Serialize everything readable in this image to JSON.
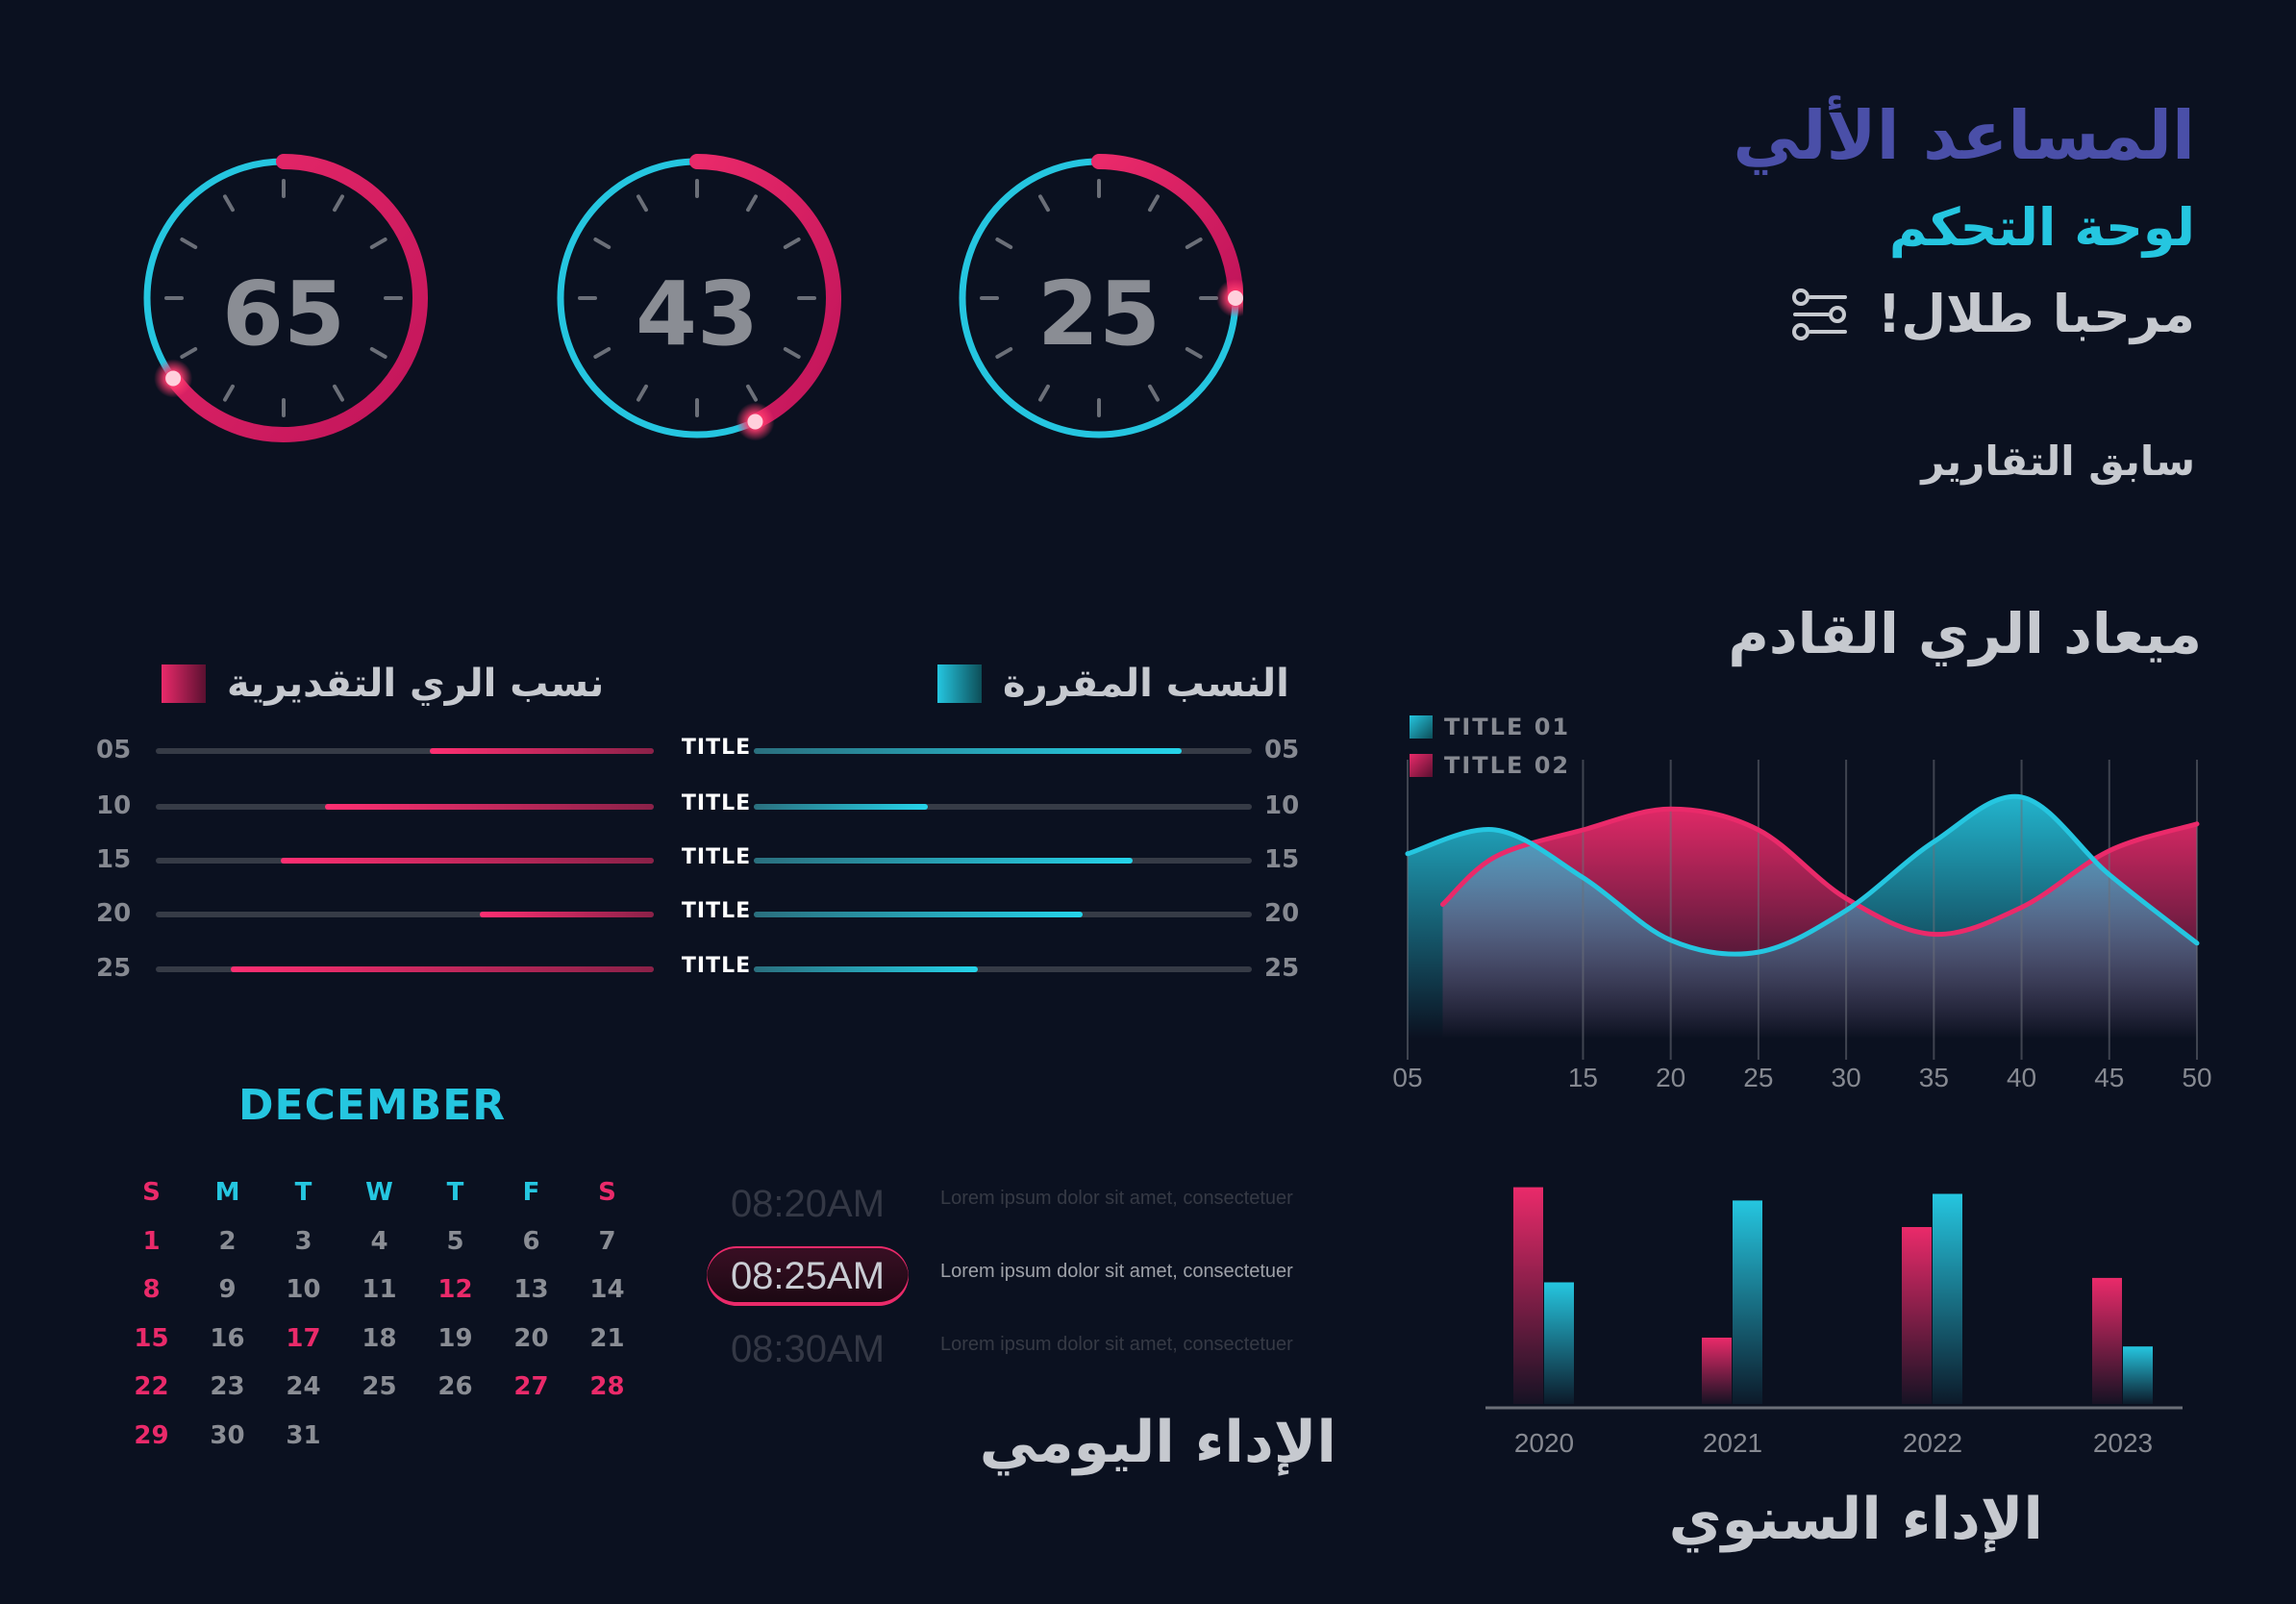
{
  "header": {
    "app_title": "المساعد الألي",
    "dashboard_title": "لوحة التحكم",
    "welcome": "مرحبا طلال!",
    "previous_reports": "سابق التقارير",
    "next_irrigation": "ميعاد الري القادم"
  },
  "gauges": [
    {
      "value": "65",
      "percent": 0.65
    },
    {
      "value": "43",
      "percent": 0.43
    },
    {
      "value": "25",
      "percent": 0.25
    }
  ],
  "comparison": {
    "left_legend": "نسب الري التقديرية",
    "right_legend": "النسب المقررة",
    "row_title": "TITLE",
    "rows": [
      {
        "num": "05",
        "left_fill": 0.45,
        "right_fill": 0.86
      },
      {
        "num": "10",
        "left_fill": 0.66,
        "right_fill": 0.35
      },
      {
        "num": "15",
        "left_fill": 0.75,
        "right_fill": 0.76
      },
      {
        "num": "20",
        "left_fill": 0.35,
        "right_fill": 0.66
      },
      {
        "num": "25",
        "left_fill": 0.85,
        "right_fill": 0.45
      }
    ]
  },
  "calendar": {
    "month": "DECEMBER",
    "weekdays": [
      "S",
      "M",
      "T",
      "W",
      "T",
      "F",
      "S"
    ],
    "days": [
      "1",
      "2",
      "3",
      "4",
      "5",
      "6",
      "7",
      "8",
      "9",
      "10",
      "11",
      "12",
      "13",
      "14",
      "15",
      "16",
      "17",
      "18",
      "19",
      "20",
      "21",
      "22",
      "23",
      "24",
      "25",
      "26",
      "27",
      "28",
      "29",
      "30",
      "31"
    ],
    "highlighted": [
      "1",
      "8",
      "12",
      "15",
      "17",
      "22",
      "27",
      "28",
      "29"
    ]
  },
  "schedule": {
    "items": [
      {
        "time": "08:20AM",
        "text": "Lorem ipsum dolor sit amet, consectetuer"
      },
      {
        "time": "08:25AM",
        "text": "Lorem ipsum dolor sit amet, consectetuer"
      },
      {
        "time": "08:30AM",
        "text": "Lorem ipsum dolor sit amet, consectetuer"
      }
    ],
    "title": "الإداء اليومي"
  },
  "annual_title": "الإداء السنوي",
  "colors": {
    "cyan": "#25c6e0",
    "pink": "#ea2a6a",
    "indigo": "#4a4fa8",
    "background": "#0b1120"
  },
  "icons": {
    "settings": "sliders-icon"
  },
  "chart_data": [
    {
      "type": "area",
      "series": [
        {
          "name": "TITLE 01",
          "x": [
            5,
            10,
            15,
            20,
            25,
            30,
            35,
            40,
            45,
            50
          ],
          "values": [
            62,
            70,
            54,
            33,
            29,
            43,
            66,
            81,
            55,
            32
          ]
        },
        {
          "name": "TITLE 02",
          "x": [
            7,
            10,
            15,
            20,
            25,
            30,
            35,
            40,
            45,
            50
          ],
          "values": [
            45,
            61,
            70,
            77,
            70,
            47,
            35,
            44,
            63,
            72
          ]
        }
      ],
      "x_ticks": [
        "05",
        "15",
        "20",
        "25",
        "30",
        "35",
        "40",
        "45",
        "50"
      ],
      "ylim": [
        0,
        100
      ]
    },
    {
      "type": "bar",
      "categories": [
        "2020",
        "2021",
        "2022",
        "2023"
      ],
      "series": [
        {
          "values": [
            98,
            30,
            80,
            57
          ]
        },
        {
          "values": [
            55,
            92,
            95,
            26
          ]
        }
      ],
      "ylim": [
        0,
        100
      ]
    }
  ]
}
